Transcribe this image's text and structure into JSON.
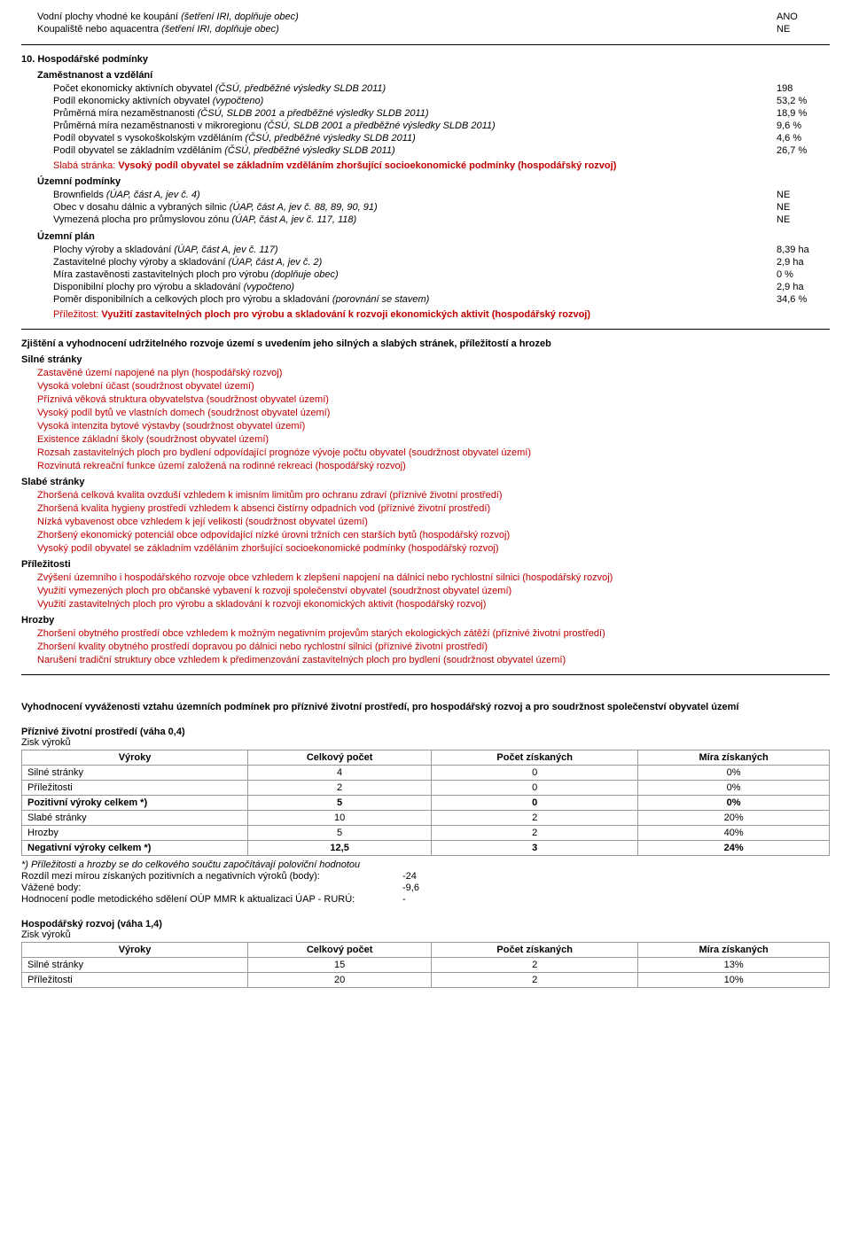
{
  "top_rows": [
    {
      "label_html": "Vodní plochy vhodné ke koupání <i>(šetření IRI, doplňuje obec)</i>",
      "value": "ANO"
    },
    {
      "label_html": "Koupaliště nebo aquacentra <i>(šetření IRI, doplňuje obec)</i>",
      "value": "NE"
    }
  ],
  "section10": {
    "title": "10. Hospodářské podmínky",
    "group1": {
      "header": "Zaměstnanost a vzdělání",
      "rows": [
        {
          "label_html": "Počet ekonomicky aktivních obyvatel <i>(ČSÚ, předběžné výsledky SLDB 2011)</i>",
          "value": "198"
        },
        {
          "label_html": "Podíl ekonomicky aktivních obyvatel <i>(vypočteno)</i>",
          "value": "53,2 %"
        },
        {
          "label_html": "Průměrná míra nezaměstnanosti <i>(ČSÚ, SLDB 2001 a předběžné výsledky SLDB 2011)</i>",
          "value": "18,9 %"
        },
        {
          "label_html": "Průměrná míra nezaměstnanosti v mikroregionu <i>(ČSÚ, SLDB 2001 a předběžné výsledky SLDB 2011)</i>",
          "value": "9,6 %"
        },
        {
          "label_html": "Podíl obyvatel s vysokoškolským vzděláním <i>(ČSÚ, předběžné výsledky SLDB 2011)</i>",
          "value": "4,6 %"
        },
        {
          "label_html": "Podíl obyvatel se základním vzděláním <i>(ČSÚ, předběžné výsledky SLDB 2011)</i>",
          "value": "26,7 %"
        }
      ],
      "red_note": {
        "lead": "Slabá stránka:",
        "text": "Vysoký podíl obyvatel se základním vzděláním zhoršující socioekonomické podmínky (hospodářský rozvoj)"
      }
    },
    "group2": {
      "header": "Územní podmínky",
      "rows": [
        {
          "label_html": "Brownfields <i>(ÚAP, část A, jev č. 4)</i>",
          "value": "NE"
        },
        {
          "label_html": "Obec v dosahu dálnic a vybraných silnic <i>(ÚAP, část A, jev č. 88, 89, 90, 91)</i>",
          "value": "NE"
        },
        {
          "label_html": "Vymezená plocha pro průmyslovou zónu <i>(ÚAP, část A, jev č. 117, 118)</i>",
          "value": "NE"
        }
      ]
    },
    "group3": {
      "header": "Územní plán",
      "rows": [
        {
          "label_html": "Plochy výroby a skladování <i>(ÚAP, část A, jev č. 117)</i>",
          "value": "8,39 ha"
        },
        {
          "label_html": "Zastavitelné plochy výroby a skladování <i>(ÚAP, část A, jev č. 2)</i>",
          "value": "2,9 ha"
        },
        {
          "label_html": "Míra zastavěnosti zastavitelných ploch pro výrobu <i>(doplňuje obec)</i>",
          "value": "0 %"
        },
        {
          "label_html": "Disponibilní plochy pro výrobu a skladování <i>(vypočteno)</i>",
          "value": "2,9 ha"
        },
        {
          "label_html": "Poměr disponibilních a celkových ploch pro výrobu a skladování <i>(porovnání se stavem)</i>",
          "value": "34,6 %"
        }
      ],
      "red_note": {
        "lead": "Příležitost:",
        "text": "Využití zastavitelných ploch pro výrobu a skladování k rozvoji ekonomických aktivit (hospodářský rozvoj)"
      }
    }
  },
  "swot": {
    "title": "Zjištění a vyhodnocení udržitelného rozvoje území s uvedením jeho silných a slabých stránek, příležitostí a hrozeb",
    "groups": [
      {
        "header": "Silné stránky",
        "items": [
          "Zastavěné území napojené na plyn  (hospodářský rozvoj)",
          "Vysoká volební účast  (soudržnost obyvatel území)",
          "Příznivá věková struktura obyvatelstva  (soudržnost obyvatel území)",
          "Vysoký podíl bytů ve vlastních domech  (soudržnost obyvatel území)",
          "Vysoká intenzita bytové výstavby  (soudržnost obyvatel území)",
          "Existence základní školy  (soudržnost obyvatel území)",
          "Rozsah zastavitelných ploch pro bydlení odpovídající prognóze vývoje počtu obyvatel  (soudržnost obyvatel území)",
          "Rozvinutá rekreační funkce území založená na rodinné rekreaci  (hospodářský rozvoj)"
        ]
      },
      {
        "header": "Slabé stránky",
        "items": [
          "Zhoršená celková kvalita ovzduší vzhledem k imisním limitům pro ochranu zdraví  (příznivé životní prostředí)",
          "Zhoršená kvalita hygieny prostředí vzhledem k absenci čistírny odpadních vod  (příznivé životní prostředí)",
          "Nízká vybavenost obce vzhledem k její velikosti  (soudržnost obyvatel území)",
          "Zhoršený ekonomický potenciál obce odpovídající nízké úrovni tržních cen starších bytů  (hospodářský rozvoj)",
          "Vysoký podíl obyvatel se základním vzděláním zhoršující socioekonomické podmínky  (hospodářský rozvoj)"
        ]
      },
      {
        "header": "Příležitosti",
        "items": [
          "Zvýšení územního i hospodářského rozvoje obce vzhledem k zlepšení napojení na dálnici nebo rychlostní silnici  (hospodářský rozvoj)",
          "Využití vymezených ploch pro občanské vybavení k rozvoji společenství obyvatel  (soudržnost obyvatel území)",
          "Využití zastavitelných ploch pro výrobu a skladování k rozvoji ekonomických aktivit  (hospodářský rozvoj)"
        ]
      },
      {
        "header": "Hrozby",
        "items": [
          "Zhoršení obytného prostředí obce vzhledem k možným negativním projevům starých ekologických zátěží  (příznivé životní prostředí)",
          "Zhoršení kvality obytného prostředí dopravou po dálnici nebo rychlostní silnici  (příznivé životní prostředí)",
          "Narušení tradiční struktury obce vzhledem k předimenzování zastavitelných ploch pro bydlení  (soudržnost obyvatel území)"
        ]
      }
    ]
  },
  "evaluation": {
    "title": "Vyhodnocení vyváženosti vztahu územních podmínek pro příznivé životní prostředí, pro hospodářský rozvoj a pro soudržnost společenství obyvatel území",
    "table_headers": [
      "Výroky",
      "Celkový počet",
      "Počet získaných",
      "Míra získaných"
    ],
    "footnote": "*) Příležitosti a hrozby se do celkového součtu započítávají poloviční hodnotou",
    "blocks": [
      {
        "header": "Příznivé životní prostředí (váha 0,4)",
        "sub": "Zisk výroků",
        "rows": [
          {
            "label": "Silné stránky",
            "c1": "4",
            "c2": "0",
            "c3": "0%",
            "bold": false
          },
          {
            "label": "Příležitosti",
            "c1": "2",
            "c2": "0",
            "c3": "0%",
            "bold": false
          },
          {
            "label": "Pozitivní výroky celkem *)",
            "c1": "5",
            "c2": "0",
            "c3": "0%",
            "bold": true
          },
          {
            "label": "Slabé stránky",
            "c1": "10",
            "c2": "2",
            "c3": "20%",
            "bold": false
          },
          {
            "label": "Hrozby",
            "c1": "5",
            "c2": "2",
            "c3": "40%",
            "bold": false
          },
          {
            "label": "Negativní výroky celkem *)",
            "c1": "12,5",
            "c2": "3",
            "c3": "24%",
            "bold": true
          }
        ],
        "kv": [
          {
            "k": "Rozdíl mezi mírou získaných pozitivních a negativních výroků (body):",
            "v": "-24"
          },
          {
            "k": "Vážené body:",
            "v": "-9,6"
          },
          {
            "k": "Hodnocení podle metodického sdělení OÚP MMR k aktualizaci ÚAP - RURÚ:",
            "v": "-"
          }
        ]
      },
      {
        "header": "Hospodářský rozvoj (váha 1,4)",
        "sub": "Zisk výroků",
        "rows": [
          {
            "label": "Silné stránky",
            "c1": "15",
            "c2": "2",
            "c3": "13%",
            "bold": false
          },
          {
            "label": "Příležitosti",
            "c1": "20",
            "c2": "2",
            "c3": "10%",
            "bold": false
          }
        ],
        "kv": []
      }
    ]
  },
  "colors": {
    "red": "#c00000",
    "text": "#000000",
    "border": "#999999"
  }
}
